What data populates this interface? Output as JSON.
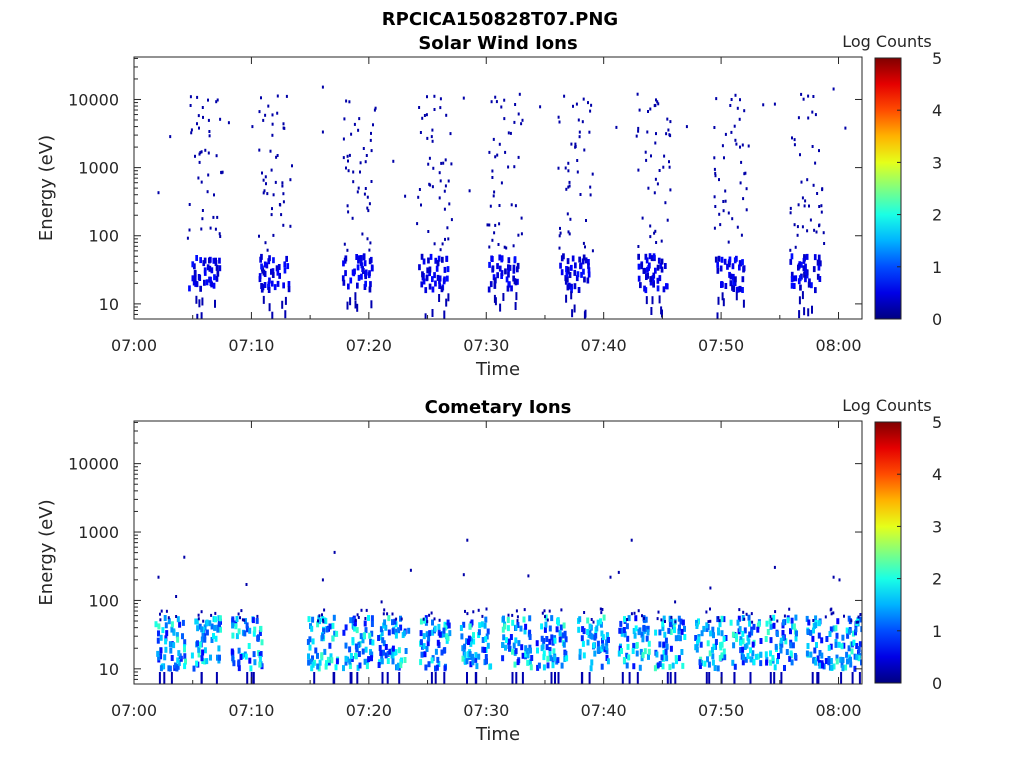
{
  "figure_title": "RPCICA150828T07.PNG",
  "chart_data": [
    {
      "type": "heatmap",
      "title": "Solar Wind Ions",
      "xlabel": "Time",
      "ylabel": "Energy (eV)",
      "xticks": [
        "07:00",
        "07:10",
        "07:20",
        "07:30",
        "07:40",
        "07:50",
        "08:00"
      ],
      "xlim_minutes": [
        0,
        62
      ],
      "yscale": "log",
      "ylim": [
        6,
        42000
      ],
      "yticks": [
        10,
        100,
        1000,
        10000
      ],
      "ytick_labels": [
        "10",
        "100",
        "1000",
        "10000"
      ],
      "colorbar": {
        "label": "Log Counts",
        "ticks": [
          "0",
          "1",
          "2",
          "3",
          "4",
          "5"
        ],
        "range": [
          0,
          5
        ],
        "colormap": "jet"
      },
      "bursts_minutes": [
        6,
        12,
        19,
        25.5,
        31.5,
        37.5,
        44.2,
        50.8,
        57.2
      ],
      "scatter_points": [
        [
          2,
          450
        ],
        [
          3,
          3000
        ],
        [
          8,
          4800
        ],
        [
          10,
          4200
        ],
        [
          16,
          16000
        ],
        [
          16,
          3500
        ],
        [
          22,
          1300
        ],
        [
          23,
          400
        ],
        [
          26,
          8000
        ],
        [
          28,
          11000
        ],
        [
          28.5,
          480
        ],
        [
          33,
          5200
        ],
        [
          34.5,
          8200
        ],
        [
          41,
          4100
        ],
        [
          47,
          4200
        ],
        [
          53.5,
          8800
        ],
        [
          54.5,
          9000
        ],
        [
          59.5,
          15000
        ],
        [
          60.5,
          4000
        ]
      ],
      "grid": false
    },
    {
      "type": "heatmap",
      "title": "Cometary Ions",
      "xlabel": "Time",
      "ylabel": "Energy (eV)",
      "xticks": [
        "07:00",
        "07:10",
        "07:20",
        "07:30",
        "07:40",
        "07:50",
        "08:00"
      ],
      "xlim_minutes": [
        0,
        62
      ],
      "yscale": "log",
      "ylim": [
        6,
        42000
      ],
      "yticks": [
        10,
        100,
        1000,
        10000
      ],
      "ytick_labels": [
        "10",
        "100",
        "1000",
        "10000"
      ],
      "colorbar": {
        "label": "Log Counts",
        "ticks": [
          "0",
          "1",
          "2",
          "3",
          "4",
          "5"
        ],
        "range": [
          0,
          5
        ],
        "colormap": "jet"
      },
      "bursts_minutes": [
        3,
        6,
        9.5,
        16,
        19,
        22,
        25.5,
        29,
        32.5,
        35.5,
        39,
        42.5,
        45.5,
        49,
        52,
        55,
        58.5,
        61
      ],
      "scatter_points": [
        [
          2,
          230
        ],
        [
          3.5,
          120
        ],
        [
          4.2,
          450
        ],
        [
          9.5,
          180
        ],
        [
          16,
          210
        ],
        [
          17,
          530
        ],
        [
          21,
          100
        ],
        [
          23.5,
          290
        ],
        [
          28,
          250
        ],
        [
          28.3,
          800
        ],
        [
          33.5,
          240
        ],
        [
          40.5,
          230
        ],
        [
          41.2,
          270
        ],
        [
          42.3,
          800
        ],
        [
          46,
          100
        ],
        [
          49,
          160
        ],
        [
          54.5,
          320
        ],
        [
          59.5,
          230
        ],
        [
          60,
          210
        ]
      ],
      "grid": false
    }
  ]
}
